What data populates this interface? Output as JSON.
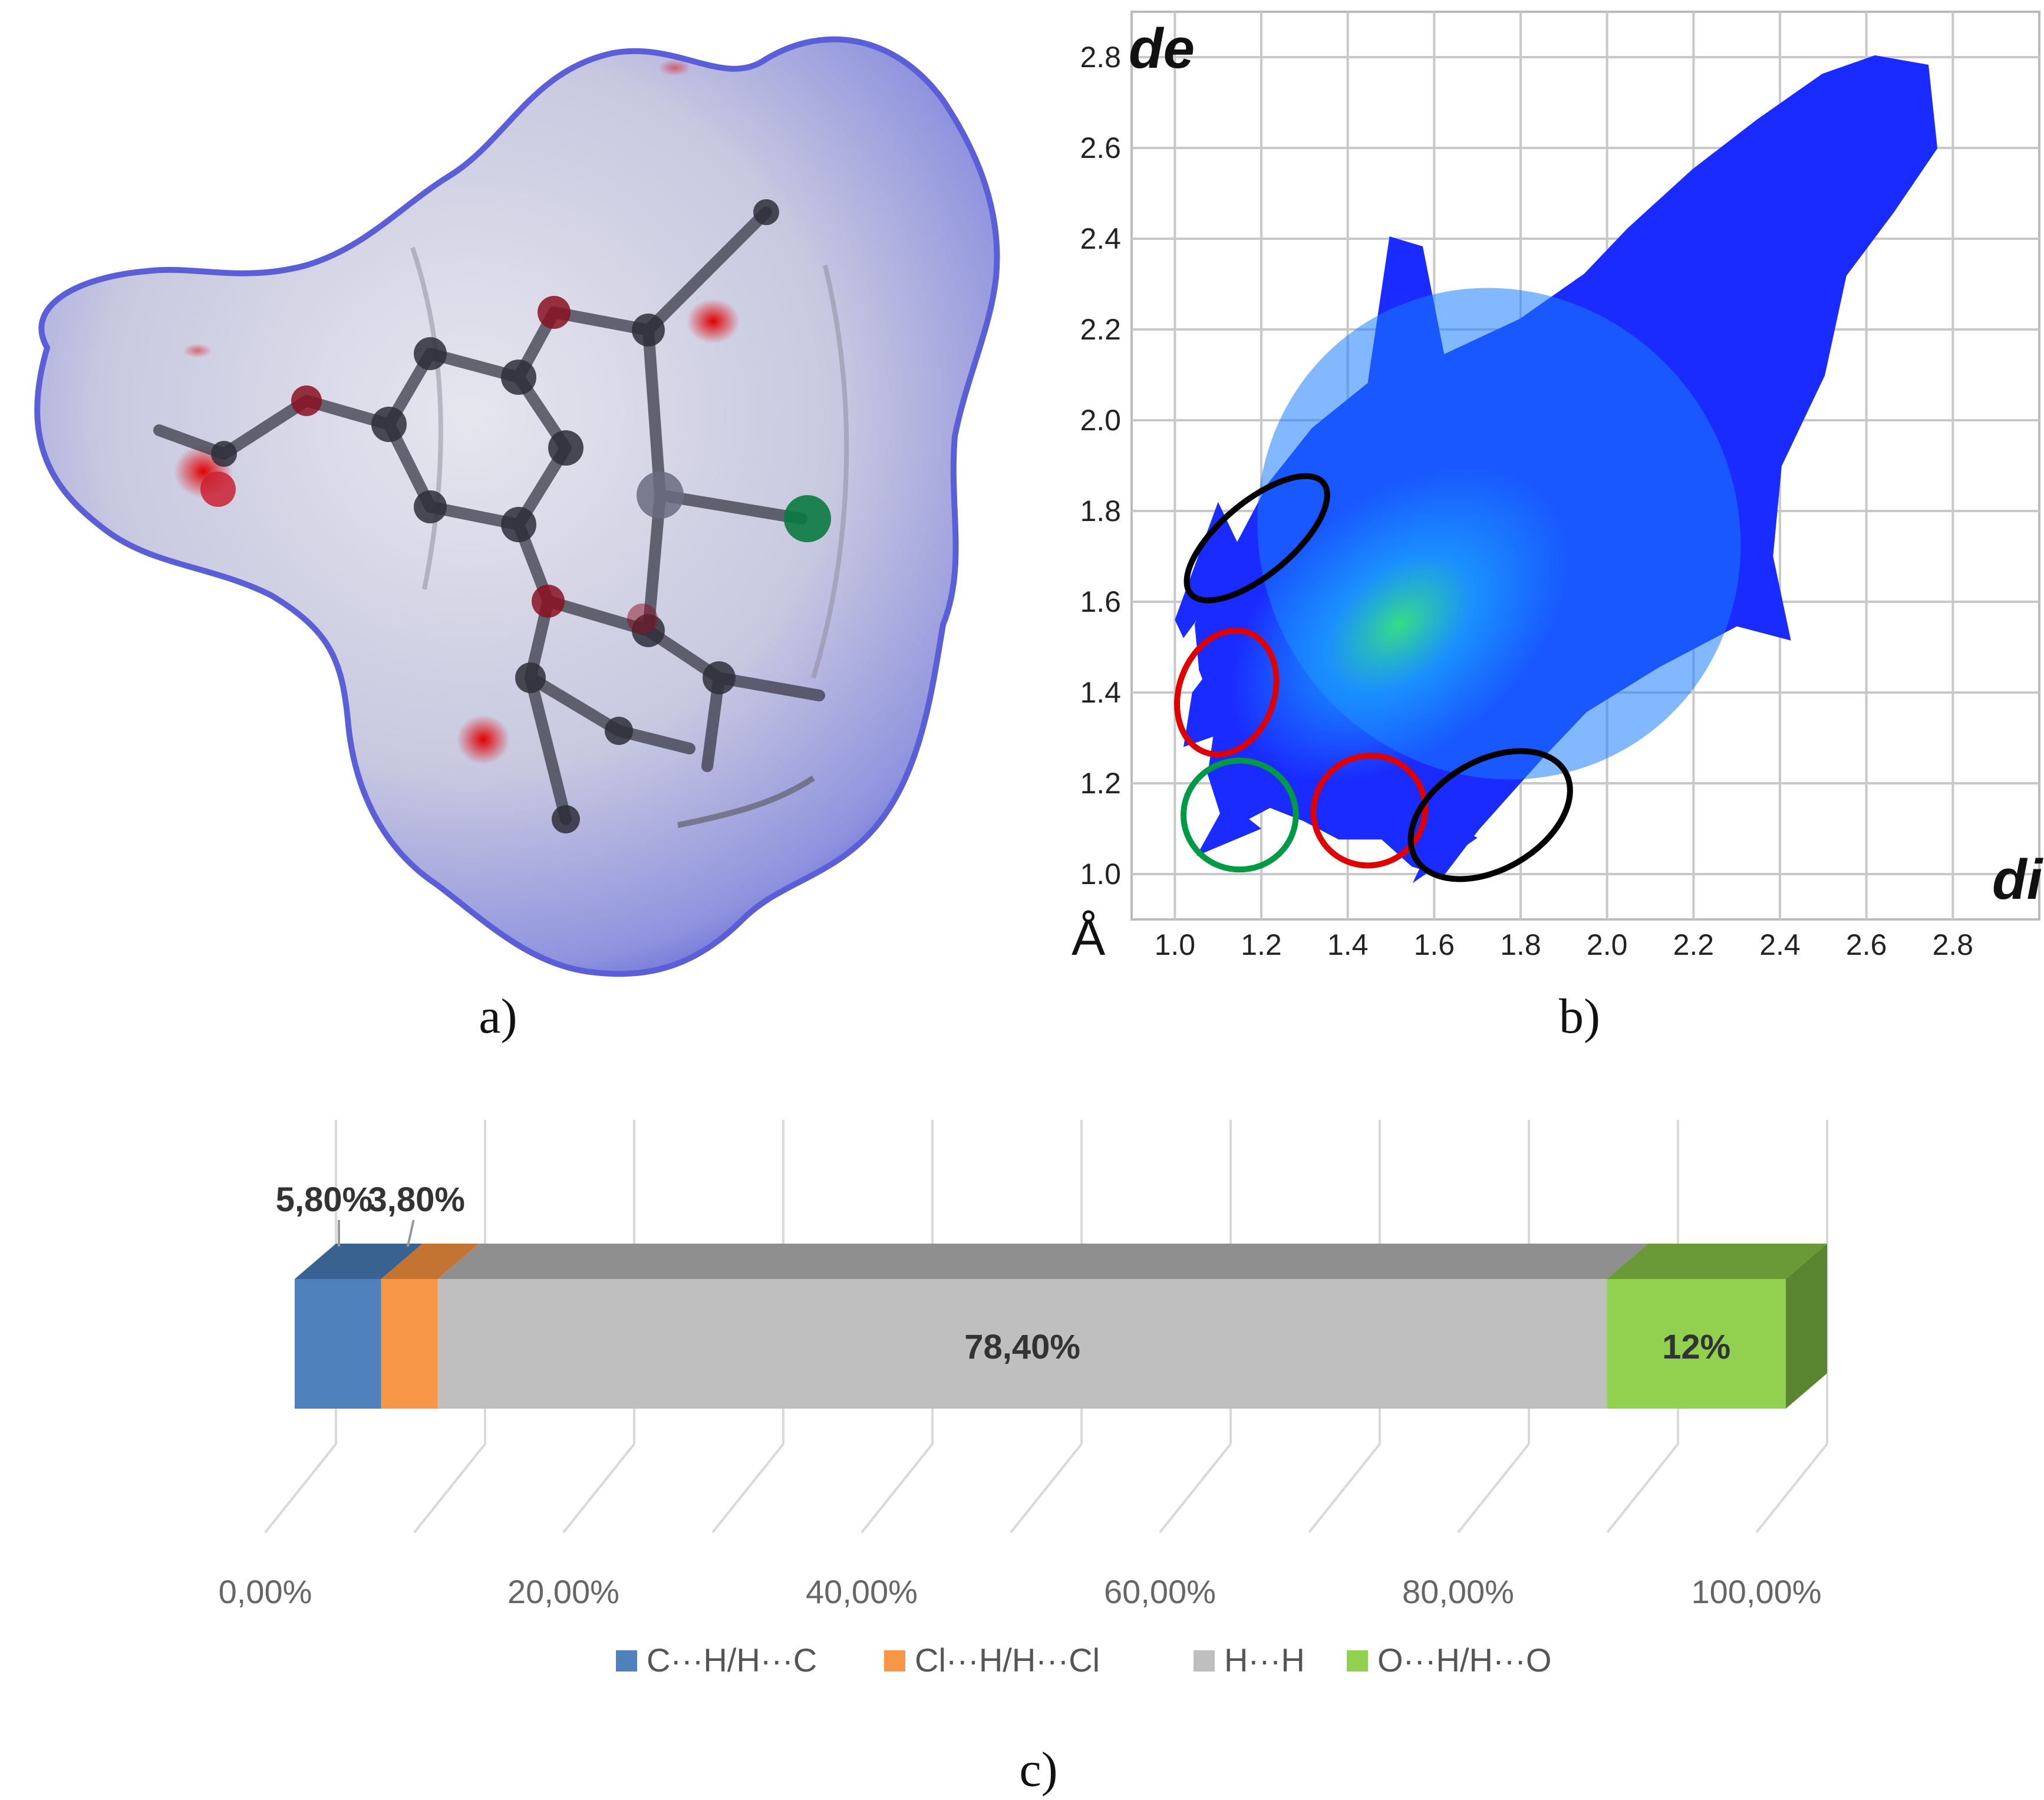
{
  "panels": {
    "a": {
      "label": "a)"
    },
    "b": {
      "label": "b)"
    },
    "c": {
      "label": "c)"
    }
  },
  "fingerprint": {
    "y_name": "de",
    "x_name": "di",
    "unit": "Å",
    "xlim": [
      0.9,
      3.0
    ],
    "ylim": [
      0.9,
      2.9
    ],
    "x_ticks": [
      "1.0",
      "1.2",
      "1.4",
      "1.6",
      "1.8",
      "2.0",
      "2.2",
      "2.4",
      "2.6",
      "2.8"
    ],
    "y_ticks": [
      "1.0",
      "1.2",
      "1.4",
      "1.6",
      "1.8",
      "2.0",
      "2.2",
      "2.4",
      "2.6",
      "2.8"
    ],
    "colors": {
      "low": "#1a2bff",
      "mid": "#1aa5ff",
      "high": "#2fe38a"
    },
    "annotations": [
      {
        "shape": "ellipse",
        "color": "#000000",
        "center": [
          1.19,
          1.74
        ],
        "rx": 0.2,
        "ry": 0.08,
        "angle": -40
      },
      {
        "shape": "ellipse",
        "color": "#e00000",
        "center": [
          1.12,
          1.4
        ],
        "rx": 0.11,
        "ry": 0.14,
        "angle": 20
      },
      {
        "shape": "ellipse",
        "color": "#009a44",
        "center": [
          1.15,
          1.13
        ],
        "rx": 0.13,
        "ry": 0.12,
        "angle": 0
      },
      {
        "shape": "ellipse",
        "color": "#e00000",
        "center": [
          1.45,
          1.14
        ],
        "rx": 0.13,
        "ry": 0.12,
        "angle": -30
      },
      {
        "shape": "ellipse",
        "color": "#000000",
        "center": [
          1.73,
          1.13
        ],
        "rx": 0.2,
        "ry": 0.12,
        "angle": -30
      }
    ]
  },
  "chart_data": {
    "type": "bar",
    "orientation": "horizontal",
    "stacked": true,
    "three_d": true,
    "xlim": [
      0,
      100
    ],
    "x_ticks": [
      "0,00%",
      "20,00%",
      "40,00%",
      "60,00%",
      "80,00%",
      "100,00%"
    ],
    "legend_position": "bottom",
    "series": [
      {
        "name": "C···H/H···C",
        "value": 5.8,
        "label": "5,80%",
        "color": "#4f81bd",
        "top": "#3a6291",
        "side": "#2f5279"
      },
      {
        "name": "Cl···H/H···Cl",
        "value": 3.8,
        "label": "3,80%",
        "color": "#f79646",
        "top": "#c47432",
        "side": "#a3602a"
      },
      {
        "name": "H···H",
        "value": 78.4,
        "label": "78,40%",
        "color": "#bfbfbf",
        "top": "#8f8f8f",
        "side": "#7a7a7a"
      },
      {
        "name": "O···H/H···O",
        "value": 12,
        "label": "12%",
        "color": "#92d050",
        "top": "#6a9a38",
        "side": "#5a8530"
      }
    ]
  }
}
